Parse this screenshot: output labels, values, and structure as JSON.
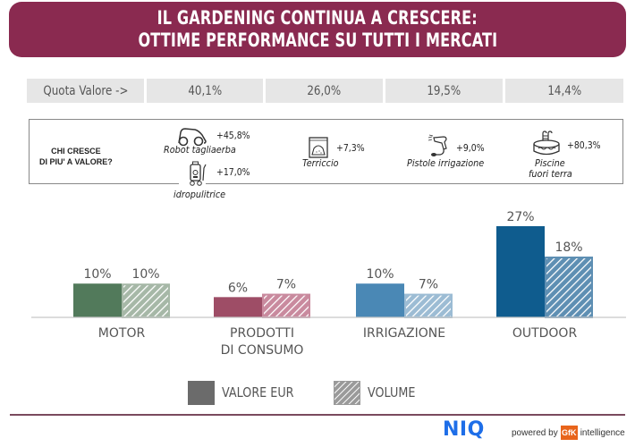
{
  "title": {
    "line1": "IL GARDENING CONTINUA A CRESCERE:",
    "line2": "OTTIME PERFORMANCE SU TUTTI I MERCATI"
  },
  "quota": {
    "label": "Quota  Valore ->",
    "values": [
      "40,1%",
      "26,0%",
      "19,5%",
      "14,4%"
    ]
  },
  "growth": {
    "question_line1": "CHI CRESCE",
    "question_line2": "DI PIU' A VALORE?",
    "items": [
      {
        "label": "Robot tagliaerba",
        "value": "+45,8%",
        "icon": "robot-mower-icon"
      },
      {
        "label": "idropulitrice",
        "value": "+17,0%",
        "icon": "pressure-washer-icon"
      },
      {
        "label": "Terriccio",
        "value": "+7,3%",
        "icon": "soil-bag-icon"
      },
      {
        "label": "Pistole irrigazione",
        "value": "+9,0%",
        "icon": "spray-gun-icon"
      },
      {
        "label_line1": "Piscine",
        "label_line2": "fuori terra",
        "value": "+80,3%",
        "icon": "pool-icon"
      }
    ]
  },
  "chart_data": {
    "type": "bar",
    "title": "",
    "xlabel": "",
    "ylabel": "",
    "categories": [
      "MOTOR",
      "PRODOTTI\nDI CONSUMO",
      "IRRIGAZIONE",
      "OUTDOOR"
    ],
    "category_lines": [
      [
        "MOTOR"
      ],
      [
        "PRODOTTI",
        "DI CONSUMO"
      ],
      [
        "IRRIGAZIONE"
      ],
      [
        "OUTDOOR"
      ]
    ],
    "series": [
      {
        "name": "VALORE EUR",
        "style": "solid",
        "values": [
          10,
          6,
          10,
          27
        ],
        "labels": [
          "10%",
          "6%",
          "10%",
          "27%"
        ]
      },
      {
        "name": "VOLUME",
        "style": "hatched",
        "values": [
          10,
          7,
          7,
          18
        ],
        "labels": [
          "10%",
          "7%",
          "7%",
          "18%"
        ]
      }
    ],
    "category_colors": [
      "#527a5b",
      "#9e4d66",
      "#4a88b5",
      "#0f5c8e"
    ],
    "category_light_colors": [
      "#a6b8a7",
      "#c98a9e",
      "#9cbcd4",
      "#5e8fb3"
    ],
    "ylim": [
      0,
      30
    ],
    "grid": false,
    "legend": "bottom",
    "units": "%"
  },
  "legend": {
    "items": [
      {
        "label": "VALORE EUR",
        "color": "#6b6b6b"
      },
      {
        "label": "VOLUME",
        "color": "#9a9a9a"
      }
    ]
  },
  "footer": {
    "brand": "NIQ",
    "powered_by": "powered by",
    "gfk": "GfK",
    "intelligence": "intelligence",
    "brand_color": "#1e6ee8",
    "gfk_color": "#e8641b"
  }
}
